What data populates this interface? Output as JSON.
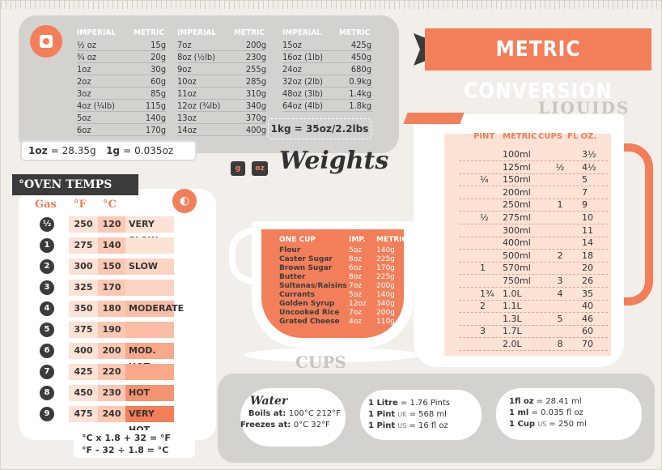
{
  "weights": {
    "col_header_imperial": "IMPERIAL",
    "col_header_metric": "METRIC",
    "col1": [
      [
        "½ oz",
        "15g"
      ],
      [
        "¾ oz",
        "20g"
      ],
      [
        "1oz",
        "30g"
      ],
      [
        "2oz",
        "60g"
      ],
      [
        "3oz",
        "85g"
      ],
      [
        "4oz (¼lb)",
        "115g"
      ],
      [
        "5oz",
        "140g"
      ],
      [
        "6oz",
        "170g"
      ]
    ],
    "col2": [
      [
        "7oz",
        "200g"
      ],
      [
        "8oz (½lb)",
        "230g"
      ],
      [
        "9oz",
        "255g"
      ],
      [
        "10oz",
        "285g"
      ],
      [
        "11oz",
        "310g"
      ],
      [
        "12oz (¾lb)",
        "340g"
      ],
      [
        "13oz",
        "370g"
      ],
      [
        "14oz",
        "400g"
      ]
    ],
    "col3": [
      [
        "15oz",
        "425g"
      ],
      [
        "16oz (1lb)",
        "450g"
      ],
      [
        "24oz",
        "680g"
      ],
      [
        "32oz (2lb)",
        "0.9kg"
      ],
      [
        "48oz (3lb)",
        "1.4kg"
      ],
      [
        "64oz (4lb)",
        "1.8kg"
      ]
    ],
    "kg_note": "1kg = 35oz/2.2lbs",
    "oz_note_a": "1oz",
    "oz_note_a_val": "= 28.35g",
    "oz_note_b": "1g",
    "oz_note_b_val": "= 0.035oz",
    "title": "Weights",
    "badge_g": "g",
    "badge_oz": "oz"
  },
  "banner": {
    "title": "METRIC CONVERSION"
  },
  "oven": {
    "title": "°OVEN TEMPS",
    "hd_gas": "Gas",
    "hd_f": "°F",
    "hd_c": "°C",
    "rows": [
      {
        "gas": "½",
        "f": "250",
        "c": "120",
        "label": "VERY SLOW"
      },
      {
        "gas": "1",
        "f": "275",
        "c": "140",
        "label": ""
      },
      {
        "gas": "2",
        "f": "300",
        "c": "150",
        "label": "SLOW"
      },
      {
        "gas": "3",
        "f": "325",
        "c": "170",
        "label": ""
      },
      {
        "gas": "4",
        "f": "350",
        "c": "180",
        "label": "MODERATE"
      },
      {
        "gas": "5",
        "f": "375",
        "c": "190",
        "label": ""
      },
      {
        "gas": "6",
        "f": "400",
        "c": "200",
        "label": "MOD. HOT"
      },
      {
        "gas": "7",
        "f": "425",
        "c": "220",
        "label": ""
      },
      {
        "gas": "8",
        "f": "450",
        "c": "230",
        "label": "HOT"
      },
      {
        "gas": "9",
        "f": "475",
        "c": "240",
        "label": "VERY HOT"
      }
    ],
    "formula1": "°C  x  1.8  +  32  =  °F",
    "formula2": "°F  -  32  ÷  1.8  =  °C"
  },
  "cup": {
    "hd_item": "ONE CUP",
    "hd_imp": "IMP.",
    "hd_metric": "METRIC",
    "rows": [
      [
        "Flour",
        "5oz",
        "140g"
      ],
      [
        "Caster Sugar",
        "8oz",
        "225g"
      ],
      [
        "Brown Sugar",
        "6oz",
        "170g"
      ],
      [
        "Butter",
        "8oz",
        "225g"
      ],
      [
        "Sultanas/Raisins",
        "7oz",
        "200g"
      ],
      [
        "Currants",
        "5oz",
        "140g"
      ],
      [
        "Golden Syrup",
        "12oz",
        "340g"
      ],
      [
        "Uncooked Rice",
        "7oz",
        "200g"
      ],
      [
        "Grated Cheese",
        "4oz",
        "110g"
      ]
    ],
    "label": "CUPS"
  },
  "liquids": {
    "label": "LIQUIDS",
    "hd_pint": "PINT",
    "hd_metric": "METRIC",
    "hd_cups": "CUPS",
    "hd_floz": "FL OZ.",
    "rows": [
      [
        "",
        "100ml",
        "",
        "3½"
      ],
      [
        "",
        "125ml",
        "½",
        "4½"
      ],
      [
        "¼",
        "150ml",
        "",
        "5"
      ],
      [
        "",
        "200ml",
        "",
        "7"
      ],
      [
        "",
        "250ml",
        "1",
        "9"
      ],
      [
        "½",
        "275ml",
        "",
        "10"
      ],
      [
        "",
        "300ml",
        "",
        "11"
      ],
      [
        "",
        "400ml",
        "",
        "14"
      ],
      [
        "",
        "500ml",
        "2",
        "18"
      ],
      [
        "1",
        "570ml",
        "",
        "20"
      ],
      [
        "",
        "750ml",
        "3",
        "26"
      ],
      [
        "1¾",
        "1.0L",
        "4",
        "35"
      ],
      [
        "2",
        "1.1L",
        "",
        "40"
      ],
      [
        "",
        "1.3L",
        "5",
        "46"
      ],
      [
        "3",
        "1.7L",
        "",
        "60"
      ],
      [
        "",
        "2.0L",
        "8",
        "70"
      ]
    ]
  },
  "water": {
    "title": "Water",
    "boils_label": "Boils at:",
    "boils_val": "100°C 212°F",
    "freezes_label": "Freezes at:",
    "freezes_val": "0°C 32°F"
  },
  "volumes": {
    "a": [
      [
        "1 Litre",
        "",
        "= 1.76 Pints"
      ],
      [
        "1 Pint",
        "UK",
        "= 568 ml"
      ],
      [
        "1 Pint",
        "US",
        "= 16 fl oz"
      ]
    ],
    "b": [
      [
        "1fl oz",
        "",
        "= 28.41 ml"
      ],
      [
        "1 ml",
        "",
        "= 0.035 fl oz"
      ],
      [
        "1 Cup",
        "US",
        "= 250 ml"
      ]
    ]
  },
  "colors": {
    "accent": "#f27f5a",
    "dark": "#3b3b3b",
    "panel": "#d4d2cf",
    "bg": "#f2efea"
  }
}
